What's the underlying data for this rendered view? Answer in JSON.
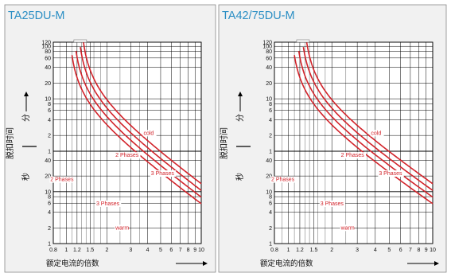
{
  "colors": {
    "panel_bg": "#f1f1f1",
    "title": "#2a8ec4",
    "curve": "#d2232a",
    "grid": "#000000",
    "border": "#888888"
  },
  "chart_data": [
    {
      "type": "line",
      "title": "TA25DU-M",
      "xlabel": "额定电流的倍数",
      "ylabel": "脱扣时间",
      "ylabel_upper_unit": "分",
      "ylabel_lower_unit": "秒",
      "x_scale": "log",
      "x_ticks": [
        "0.8",
        "1",
        "1.2",
        "1.5",
        "2",
        "3",
        "4",
        "5",
        "6",
        "7",
        "8",
        "9",
        "10"
      ],
      "y_upper_ticks": [
        "120",
        "100",
        "80",
        "60",
        "40",
        "20",
        "10",
        "8",
        "6",
        "4",
        "2",
        "1"
      ],
      "y_lower_ticks": [
        "40",
        "20",
        "10",
        "8",
        "6",
        "4",
        "2",
        "1"
      ],
      "xlim": [
        0.8,
        10
      ],
      "ylim_upper_minutes": [
        1,
        120
      ],
      "ylim_lower_seconds": [
        1,
        60
      ],
      "series_curve_multiples": [
        1.08,
        1.16,
        1.25,
        1.32
      ],
      "annotations": [
        "cold",
        "2 Phases",
        "3 Phases",
        "2 Phases",
        "3 Phases",
        "warm"
      ]
    },
    {
      "type": "line",
      "title": "TA42/75DU-M",
      "xlabel": "额定电流的倍数",
      "ylabel": "脱扣时间",
      "ylabel_upper_unit": "分",
      "ylabel_lower_unit": "秒",
      "x_scale": "log",
      "x_ticks": [
        "0.8",
        "1",
        "1.2",
        "1.5",
        "2",
        "3",
        "4",
        "5",
        "6",
        "7",
        "8",
        "9",
        "10"
      ],
      "y_upper_ticks": [
        "120",
        "100",
        "80",
        "60",
        "40",
        "20",
        "10",
        "8",
        "6",
        "4",
        "2",
        "1"
      ],
      "y_lower_ticks": [
        "40",
        "20",
        "10",
        "8",
        "6",
        "4",
        "2",
        "1"
      ],
      "xlim": [
        0.8,
        10
      ],
      "ylim_upper_minutes": [
        1,
        120
      ],
      "ylim_lower_seconds": [
        1,
        60
      ],
      "series_curve_multiples": [
        1.08,
        1.16,
        1.25,
        1.32
      ],
      "annotations": [
        "cold",
        "2 Phases",
        "3 Phases",
        "2 Phases",
        "3 Phases",
        "warm"
      ]
    }
  ]
}
